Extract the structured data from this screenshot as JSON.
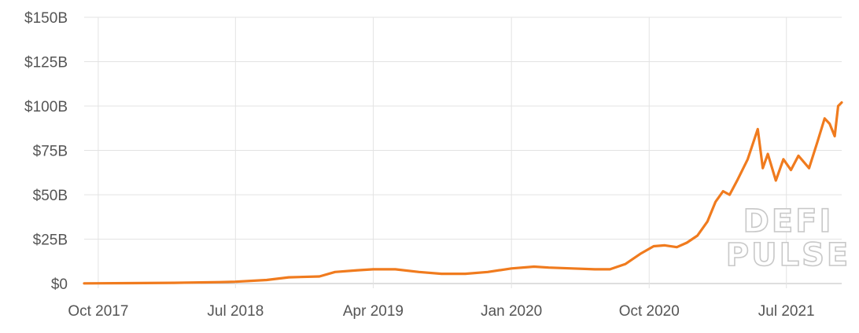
{
  "chart_data": {
    "type": "line",
    "title": "",
    "xlabel": "",
    "ylabel": "",
    "ylim": [
      0,
      150
    ],
    "y_ticks": [
      0,
      25,
      50,
      75,
      100,
      125,
      150
    ],
    "y_tick_labels": [
      "$0",
      "$25B",
      "$50B",
      "$75B",
      "$100B",
      "$125B",
      "$150B"
    ],
    "x_tick_dates": [
      "2017-10-01",
      "2018-07-01",
      "2019-04-01",
      "2020-01-01",
      "2020-10-01",
      "2021-07-01"
    ],
    "x_tick_labels": [
      "Oct 2017",
      "Jul 2018",
      "Apr 2019",
      "Jan 2020",
      "Oct 2020",
      "Jul 2021"
    ],
    "xlim": [
      "2017-09-03",
      "2021-10-19"
    ],
    "grid": true,
    "line_color": "#f07b1e",
    "watermark": [
      "DEFI",
      "PULSE"
    ],
    "series": [
      {
        "x": [
          "2017-09-03",
          "2017-12-01",
          "2018-03-01",
          "2018-06-01",
          "2018-07-01",
          "2018-09-01",
          "2018-10-15",
          "2018-12-15",
          "2019-01-15",
          "2019-03-01",
          "2019-04-01",
          "2019-05-15",
          "2019-07-01",
          "2019-08-15",
          "2019-10-01",
          "2019-11-15",
          "2020-01-01",
          "2020-02-15",
          "2020-03-15",
          "2020-05-01",
          "2020-06-15",
          "2020-07-15",
          "2020-08-15",
          "2020-09-15",
          "2020-10-10",
          "2020-11-01",
          "2020-11-25",
          "2020-12-15",
          "2021-01-05",
          "2021-01-25",
          "2021-02-10",
          "2021-02-25",
          "2021-03-10",
          "2021-03-25",
          "2021-04-15",
          "2021-05-05",
          "2021-05-15",
          "2021-05-25",
          "2021-06-10",
          "2021-06-25",
          "2021-07-10",
          "2021-07-25",
          "2021-08-15",
          "2021-09-01",
          "2021-09-15",
          "2021-09-25",
          "2021-10-05",
          "2021-10-12",
          "2021-10-19"
        ],
        "y": [
          0.1,
          0.2,
          0.4,
          0.8,
          1.0,
          2.0,
          3.5,
          4.0,
          6.5,
          7.5,
          8.0,
          8.0,
          6.5,
          5.5,
          5.5,
          6.5,
          8.5,
          9.5,
          9.0,
          8.5,
          8.0,
          8.0,
          11.0,
          17.0,
          21.0,
          21.5,
          20.5,
          23.0,
          27.0,
          35.0,
          46.0,
          52.0,
          50.0,
          58.0,
          70.0,
          87.0,
          65.0,
          73.0,
          58.0,
          70.0,
          64.0,
          72.0,
          65.0,
          80.0,
          93.0,
          90.0,
          83.0,
          100.0,
          102.0
        ]
      }
    ]
  }
}
